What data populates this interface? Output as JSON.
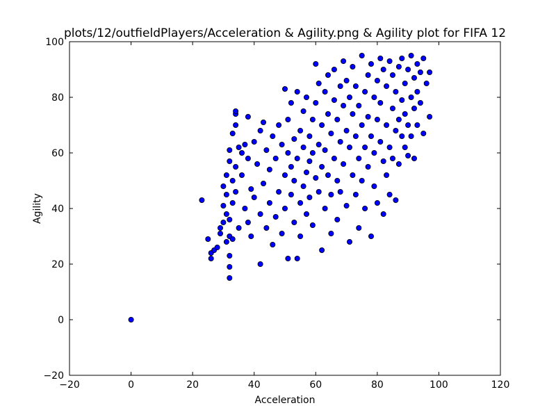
{
  "chart_data": {
    "type": "scatter",
    "title": "plots/12/outfieldPlayers/Acceleration & Agility.png & Agility plot for FIFA 12",
    "xlabel": "Acceleration",
    "ylabel": "Agility",
    "xlim": [
      -20,
      120
    ],
    "ylim": [
      -20,
      100
    ],
    "xticks": [
      -20,
      0,
      20,
      40,
      60,
      80,
      100,
      120
    ],
    "yticks": [
      -20,
      0,
      20,
      40,
      60,
      80,
      100
    ],
    "grid": false,
    "marker_color": "#0000ff",
    "marker_edge_color": "#000000",
    "series": [
      {
        "points": [
          [
            0,
            0
          ],
          [
            23,
            43
          ],
          [
            25,
            29
          ],
          [
            26,
            24
          ],
          [
            26,
            22
          ],
          [
            27,
            25
          ],
          [
            28,
            26
          ],
          [
            29,
            33
          ],
          [
            29,
            31
          ],
          [
            30,
            35
          ],
          [
            30,
            41
          ],
          [
            30,
            48
          ],
          [
            31,
            28
          ],
          [
            31,
            45
          ],
          [
            31,
            38
          ],
          [
            31,
            52
          ],
          [
            32,
            15
          ],
          [
            32,
            19
          ],
          [
            32,
            23
          ],
          [
            32,
            30
          ],
          [
            32,
            36
          ],
          [
            32,
            57
          ],
          [
            32,
            61
          ],
          [
            33,
            67
          ],
          [
            33,
            42
          ],
          [
            33,
            50
          ],
          [
            33,
            29
          ],
          [
            34,
            74
          ],
          [
            34,
            75
          ],
          [
            34,
            70
          ],
          [
            34,
            55
          ],
          [
            34,
            46
          ],
          [
            35,
            33
          ],
          [
            35,
            62
          ],
          [
            36,
            60
          ],
          [
            36,
            52
          ],
          [
            37,
            40
          ],
          [
            37,
            63
          ],
          [
            38,
            73
          ],
          [
            38,
            58
          ],
          [
            38,
            35
          ],
          [
            39,
            47
          ],
          [
            39,
            30
          ],
          [
            40,
            64
          ],
          [
            40,
            44
          ],
          [
            41,
            56
          ],
          [
            42,
            20
          ],
          [
            42,
            68
          ],
          [
            42,
            38
          ],
          [
            43,
            71
          ],
          [
            43,
            49
          ],
          [
            44,
            61
          ],
          [
            44,
            33
          ],
          [
            45,
            54
          ],
          [
            45,
            42
          ],
          [
            46,
            66
          ],
          [
            46,
            27
          ],
          [
            47,
            58
          ],
          [
            47,
            37
          ],
          [
            48,
            70
          ],
          [
            48,
            46
          ],
          [
            49,
            63
          ],
          [
            49,
            31
          ],
          [
            50,
            52
          ],
          [
            50,
            83
          ],
          [
            50,
            40
          ],
          [
            51,
            72
          ],
          [
            51,
            22
          ],
          [
            51,
            60
          ],
          [
            52,
            55
          ],
          [
            52,
            45
          ],
          [
            52,
            78
          ],
          [
            53,
            65
          ],
          [
            53,
            35
          ],
          [
            53,
            50
          ],
          [
            54,
            22
          ],
          [
            54,
            82
          ],
          [
            54,
            58
          ],
          [
            55,
            42
          ],
          [
            55,
            68
          ],
          [
            55,
            30
          ],
          [
            56,
            62
          ],
          [
            56,
            75
          ],
          [
            56,
            48
          ],
          [
            57,
            53
          ],
          [
            57,
            80
          ],
          [
            57,
            38
          ],
          [
            58,
            66
          ],
          [
            58,
            57
          ],
          [
            58,
            44
          ],
          [
            59,
            72
          ],
          [
            59,
            60
          ],
          [
            59,
            34
          ],
          [
            60,
            92
          ],
          [
            60,
            51
          ],
          [
            60,
            78
          ],
          [
            61,
            63
          ],
          [
            61,
            46
          ],
          [
            61,
            85
          ],
          [
            62,
            25
          ],
          [
            62,
            55
          ],
          [
            62,
            70
          ],
          [
            63,
            40
          ],
          [
            63,
            82
          ],
          [
            63,
            61
          ],
          [
            64,
            52
          ],
          [
            64,
            88
          ],
          [
            64,
            74
          ],
          [
            65,
            45
          ],
          [
            65,
            67
          ],
          [
            65,
            31
          ],
          [
            66,
            58
          ],
          [
            66,
            79
          ],
          [
            66,
            90
          ],
          [
            67,
            50
          ],
          [
            67,
            72
          ],
          [
            67,
            36
          ],
          [
            68,
            64
          ],
          [
            68,
            84
          ],
          [
            68,
            46
          ],
          [
            69,
            56
          ],
          [
            69,
            77
          ],
          [
            69,
            93
          ],
          [
            70,
            41
          ],
          [
            70,
            68
          ],
          [
            70,
            86
          ],
          [
            71,
            28
          ],
          [
            71,
            62
          ],
          [
            71,
            80
          ],
          [
            72,
            52
          ],
          [
            72,
            74
          ],
          [
            72,
            91
          ],
          [
            73,
            45
          ],
          [
            73,
            66
          ],
          [
            73,
            84
          ],
          [
            74,
            58
          ],
          [
            74,
            77
          ],
          [
            74,
            33
          ],
          [
            75,
            95
          ],
          [
            75,
            70
          ],
          [
            75,
            50
          ],
          [
            76,
            62
          ],
          [
            76,
            82
          ],
          [
            76,
            40
          ],
          [
            77,
            88
          ],
          [
            77,
            73
          ],
          [
            77,
            55
          ],
          [
            78,
            30
          ],
          [
            78,
            66
          ],
          [
            78,
            92
          ],
          [
            79,
            80
          ],
          [
            79,
            48
          ],
          [
            79,
            60
          ],
          [
            80,
            86
          ],
          [
            80,
            72
          ],
          [
            80,
            42
          ],
          [
            81,
            94
          ],
          [
            81,
            64
          ],
          [
            81,
            78
          ],
          [
            82,
            57
          ],
          [
            82,
            90
          ],
          [
            82,
            38
          ],
          [
            83,
            70
          ],
          [
            83,
            84
          ],
          [
            83,
            52
          ],
          [
            84,
            62
          ],
          [
            84,
            93
          ],
          [
            84,
            45
          ],
          [
            85,
            76
          ],
          [
            85,
            88
          ],
          [
            85,
            58
          ],
          [
            86,
            43
          ],
          [
            86,
            68
          ],
          [
            86,
            82
          ],
          [
            87,
            91
          ],
          [
            87,
            72
          ],
          [
            87,
            56
          ],
          [
            88,
            79
          ],
          [
            88,
            66
          ],
          [
            88,
            94
          ],
          [
            89,
            85
          ],
          [
            89,
            62
          ],
          [
            89,
            74
          ],
          [
            90,
            90
          ],
          [
            90,
            70
          ],
          [
            90,
            59
          ],
          [
            91,
            95
          ],
          [
            91,
            80
          ],
          [
            91,
            66
          ],
          [
            92,
            87
          ],
          [
            92,
            76
          ],
          [
            92,
            58
          ],
          [
            93,
            92
          ],
          [
            93,
            82
          ],
          [
            93,
            70
          ],
          [
            94,
            89
          ],
          [
            94,
            78
          ],
          [
            95,
            94
          ],
          [
            95,
            67
          ],
          [
            96,
            85
          ],
          [
            97,
            89
          ],
          [
            97,
            73
          ]
        ]
      }
    ]
  }
}
